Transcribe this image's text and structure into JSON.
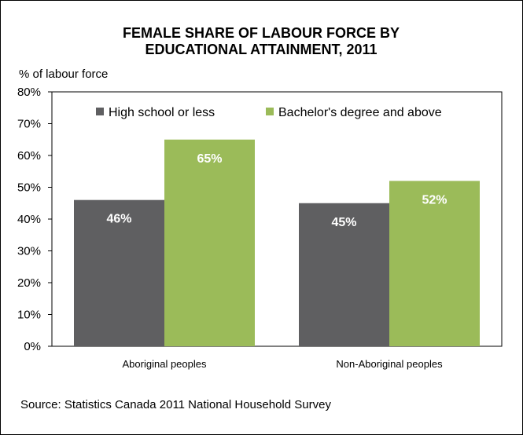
{
  "chart_data": {
    "type": "bar",
    "title": "FEMALE SHARE OF LABOUR FORCE  BY EDUCATIONAL ATTAINMENT, 2011",
    "title_lines": [
      "FEMALE SHARE OF LABOUR FORCE  BY",
      "EDUCATIONAL ATTAINMENT, 2011"
    ],
    "ylabel": "% of labour force",
    "xlabel": "",
    "categories": [
      "Aboriginal peoples",
      "Non-Aboriginal peoples"
    ],
    "series": [
      {
        "name": "High school or less",
        "values": [
          46,
          45
        ],
        "labels": [
          "46%",
          "45%"
        ],
        "color": "#5f5f61"
      },
      {
        "name": "Bachelor's degree and above",
        "values": [
          65,
          52
        ],
        "labels": [
          "65%",
          "52%"
        ],
        "color": "#9bbb59"
      }
    ],
    "ylim": [
      0,
      80
    ],
    "yticks": [
      0,
      10,
      20,
      30,
      40,
      50,
      60,
      70,
      80
    ],
    "ytick_labels": [
      "0%",
      "10%",
      "20%",
      "30%",
      "40%",
      "50%",
      "60%",
      "70%",
      "80%"
    ],
    "grid": false,
    "legend_position": "top",
    "source": "Source: Statistics Canada 2011 National Household Survey"
  }
}
